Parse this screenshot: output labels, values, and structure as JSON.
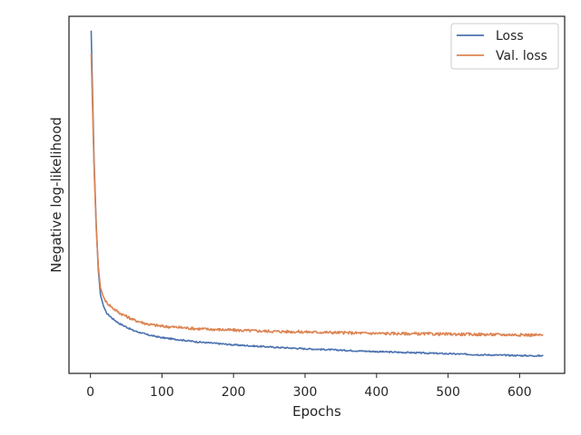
{
  "chart_data": {
    "type": "line",
    "title": "",
    "xlabel": "Epochs",
    "ylabel": "Negative log-likelihood",
    "xlim": [
      -30,
      663
    ],
    "xticks": [
      0,
      100,
      200,
      300,
      400,
      500,
      600
    ],
    "y_tick_labels_shown": false,
    "ylim": [
      0.0,
      1.0
    ],
    "grid": false,
    "legend_position": "top-right",
    "series": [
      {
        "name": "Loss",
        "color": "#4c72b0",
        "points": [
          [
            1,
            0.96
          ],
          [
            3,
            0.78
          ],
          [
            5,
            0.6
          ],
          [
            8,
            0.42
          ],
          [
            11,
            0.29
          ],
          [
            14,
            0.22
          ],
          [
            18,
            0.19
          ],
          [
            22,
            0.17
          ],
          [
            30,
            0.155
          ],
          [
            40,
            0.14
          ],
          [
            60,
            0.12
          ],
          [
            80,
            0.108
          ],
          [
            100,
            0.1
          ],
          [
            150,
            0.088
          ],
          [
            200,
            0.08
          ],
          [
            250,
            0.074
          ],
          [
            300,
            0.069
          ],
          [
            350,
            0.065
          ],
          [
            400,
            0.061
          ],
          [
            450,
            0.058
          ],
          [
            500,
            0.055
          ],
          [
            550,
            0.052
          ],
          [
            600,
            0.05
          ],
          [
            633,
            0.049
          ]
        ]
      },
      {
        "name": "Val. loss",
        "color": "#dd8452",
        "points": [
          [
            1,
            0.895
          ],
          [
            3,
            0.74
          ],
          [
            5,
            0.58
          ],
          [
            8,
            0.41
          ],
          [
            11,
            0.3
          ],
          [
            14,
            0.24
          ],
          [
            18,
            0.215
          ],
          [
            22,
            0.2
          ],
          [
            30,
            0.185
          ],
          [
            40,
            0.17
          ],
          [
            60,
            0.15
          ],
          [
            80,
            0.138
          ],
          [
            100,
            0.132
          ],
          [
            150,
            0.125
          ],
          [
            200,
            0.121
          ],
          [
            250,
            0.118
          ],
          [
            300,
            0.116
          ],
          [
            350,
            0.114
          ],
          [
            400,
            0.112
          ],
          [
            450,
            0.111
          ],
          [
            500,
            0.11
          ],
          [
            550,
            0.109
          ],
          [
            600,
            0.108
          ],
          [
            633,
            0.107
          ]
        ]
      }
    ]
  }
}
